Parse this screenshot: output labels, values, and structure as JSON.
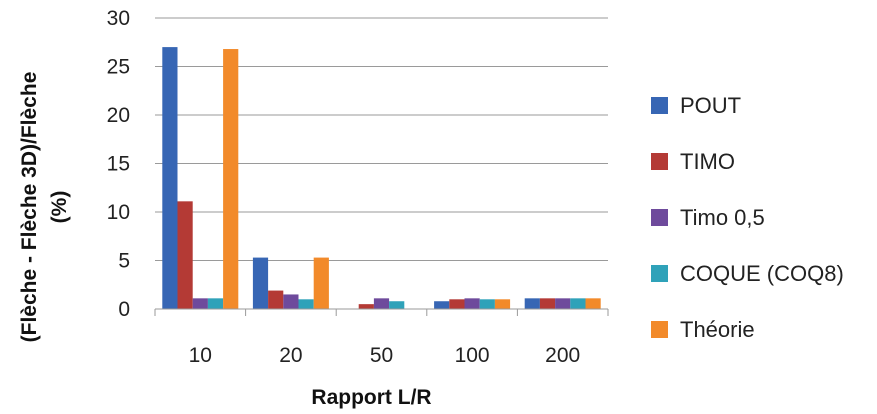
{
  "chart_data": {
    "type": "bar",
    "categories": [
      "10",
      "20",
      "50",
      "100",
      "200"
    ],
    "series": [
      {
        "name": "POUT",
        "color": "#3766b4",
        "values": [
          27,
          5.3,
          0,
          0.8,
          1.1
        ]
      },
      {
        "name": "TIMO",
        "color": "#b43a35",
        "values": [
          11.1,
          1.9,
          0.5,
          1.0,
          1.1
        ]
      },
      {
        "name": "Timo 0,5",
        "color": "#6e4a9c",
        "values": [
          1.1,
          1.5,
          1.1,
          1.1,
          1.1
        ]
      },
      {
        "name": "COQUE (COQ8)",
        "color": "#2fa2b9",
        "values": [
          1.1,
          1.0,
          0.8,
          1.0,
          1.1
        ]
      },
      {
        "name": "Théorie",
        "color": "#f28a2a",
        "values": [
          26.8,
          5.3,
          0,
          1.0,
          1.1
        ]
      }
    ],
    "title": "",
    "xlabel": "Rapport L/R",
    "ylabel_line1": "(Flèche - Flèche 3D)/Flèche",
    "ylabel_line2": "(%)",
    "ylim": [
      0,
      30
    ],
    "yticks": [
      "0",
      "5",
      "10",
      "15",
      "20",
      "25",
      "30"
    ],
    "grid": true,
    "legend_position": "right"
  }
}
